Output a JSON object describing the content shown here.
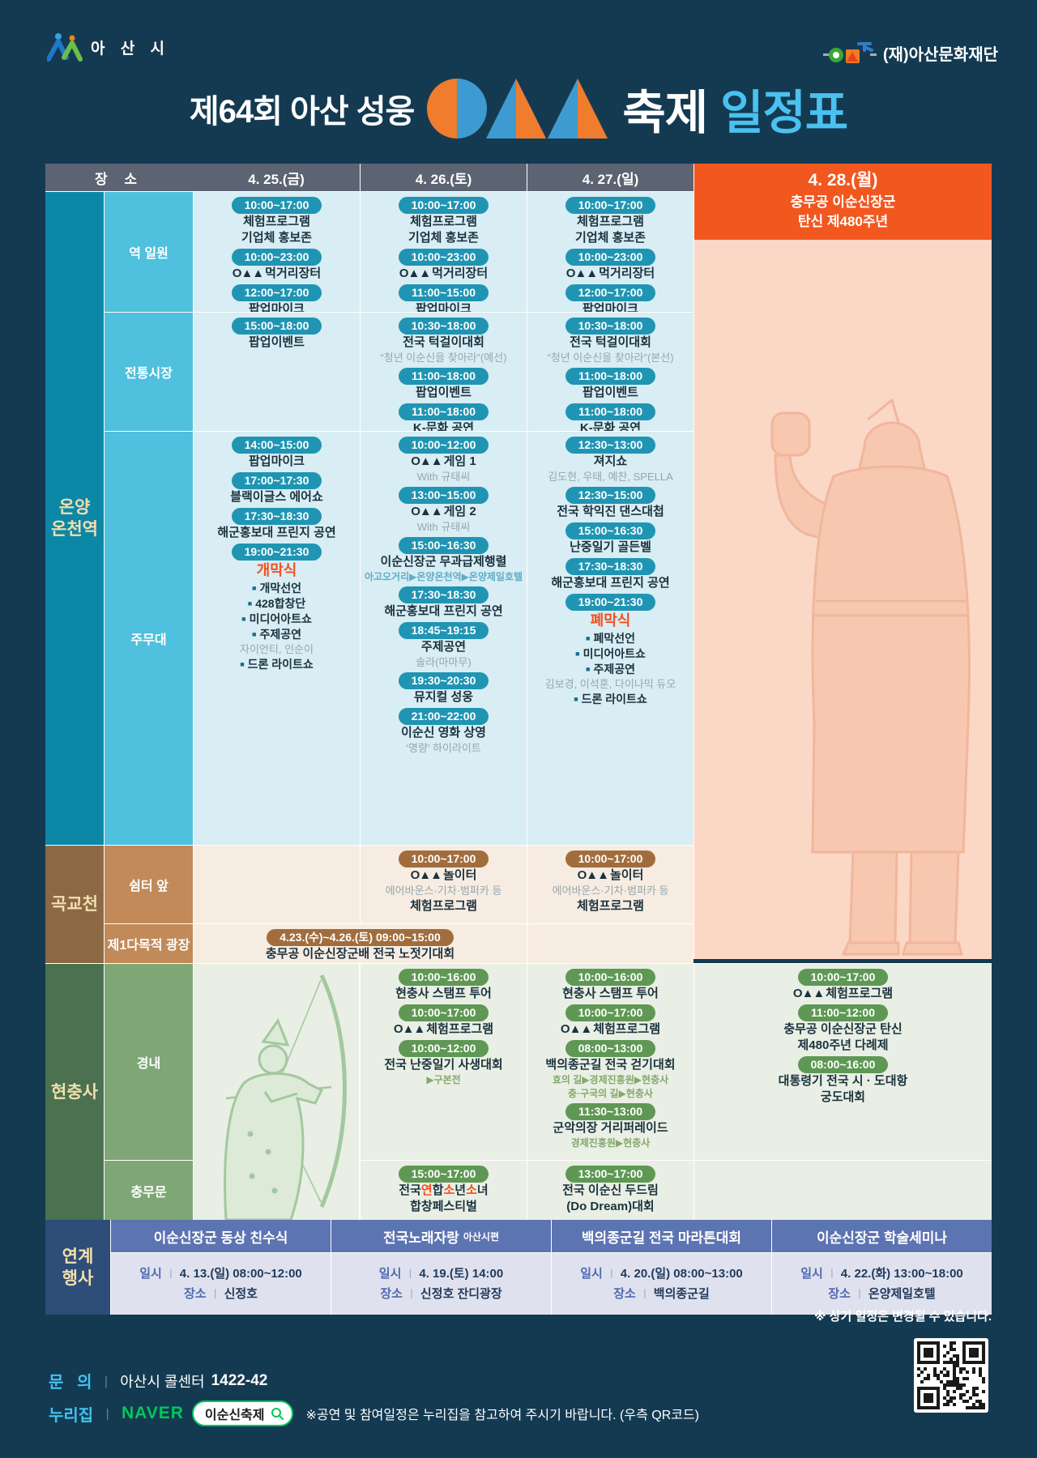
{
  "logos": {
    "city": "아 산 시",
    "foundation": "(재)아산문화재단"
  },
  "title": {
    "prefix": "제64회 아산 성웅",
    "festival": "축제",
    "schedule": "일정표"
  },
  "logo_prefix": "O▲▲",
  "colors": {
    "accent_orange": "#f2571f",
    "title_blue": "#4ac1f0",
    "naver_green": "#03c75a",
    "pale_yellow": "#f3dfae"
  },
  "table": {
    "place_header": "장 소",
    "day_headers": [
      "4. 25.(금)",
      "4. 26.(토)",
      "4. 27.(일)"
    ],
    "special": {
      "day": "4. 28.(월)",
      "line1": "충무공 이순신장군",
      "line2": "탄신 제480주년"
    },
    "sections": [
      {
        "id": "onyang",
        "label_lines": [
          "온양",
          "온천역"
        ],
        "colors": {
          "group": "#0d87a6",
          "place": "#4fc0dd",
          "cell": "#d8edf4",
          "pill": "#2095b3",
          "route": "#5fadc6"
        },
        "rows": [
          {
            "place": "역 일원",
            "cells": [
              {
                "lines": [
                  {
                    "t": "pill",
                    "x": "10:00~17:00"
                  },
                  {
                    "t": "title",
                    "x": "체험프로그램"
                  },
                  {
                    "t": "title",
                    "x": "기업체 홍보존"
                  },
                  {
                    "t": "pill",
                    "x": "10:00~23:00"
                  },
                  {
                    "t": "logo",
                    "x": "먹거리장터"
                  },
                  {
                    "t": "pill",
                    "x": "12:00~17:00"
                  },
                  {
                    "t": "title",
                    "x": "팝업마이크"
                  }
                ]
              },
              {
                "lines": [
                  {
                    "t": "pill",
                    "x": "10:00~17:00"
                  },
                  {
                    "t": "title",
                    "x": "체험프로그램"
                  },
                  {
                    "t": "title",
                    "x": "기업체 홍보존"
                  },
                  {
                    "t": "pill",
                    "x": "10:00~23:00"
                  },
                  {
                    "t": "logo",
                    "x": "먹거리장터"
                  },
                  {
                    "t": "pill",
                    "x": "11:00~15:00"
                  },
                  {
                    "t": "title",
                    "x": "팝업마이크"
                  }
                ]
              },
              {
                "lines": [
                  {
                    "t": "pill",
                    "x": "10:00~17:00"
                  },
                  {
                    "t": "title",
                    "x": "체험프로그램"
                  },
                  {
                    "t": "title",
                    "x": "기업체 홍보존"
                  },
                  {
                    "t": "pill",
                    "x": "10:00~23:00"
                  },
                  {
                    "t": "logo",
                    "x": "먹거리장터"
                  },
                  {
                    "t": "pill",
                    "x": "12:00~17:00"
                  },
                  {
                    "t": "title",
                    "x": "팝업마이크"
                  }
                ]
              }
            ]
          },
          {
            "place": "전통시장",
            "cells": [
              {
                "lines": [
                  {
                    "t": "pill",
                    "x": "15:00~18:00"
                  },
                  {
                    "t": "title",
                    "x": "팝업이벤트"
                  }
                ]
              },
              {
                "lines": [
                  {
                    "t": "pill",
                    "x": "10:30~18:00"
                  },
                  {
                    "t": "title",
                    "x": "전국 턱걸이대회"
                  },
                  {
                    "t": "sub",
                    "x": "“청년 이순신을 찾아라”(예선)"
                  },
                  {
                    "t": "pill",
                    "x": "11:00~18:00"
                  },
                  {
                    "t": "title",
                    "x": "팝업이벤트"
                  },
                  {
                    "t": "pill",
                    "x": "11:00~18:00"
                  },
                  {
                    "t": "title",
                    "x": "K-문화 공연"
                  }
                ]
              },
              {
                "lines": [
                  {
                    "t": "pill",
                    "x": "10:30~18:00"
                  },
                  {
                    "t": "title",
                    "x": "전국 턱걸이대회"
                  },
                  {
                    "t": "sub",
                    "x": "“청년 이순신을 찾아라”(본선)"
                  },
                  {
                    "t": "pill",
                    "x": "11:00~18:00"
                  },
                  {
                    "t": "title",
                    "x": "팝업이벤트"
                  },
                  {
                    "t": "pill",
                    "x": "11:00~18:00"
                  },
                  {
                    "t": "title",
                    "x": "K-문화 공연"
                  }
                ]
              }
            ]
          },
          {
            "place": "주무대",
            "cells": [
              {
                "lines": [
                  {
                    "t": "pill",
                    "x": "14:00~15:00"
                  },
                  {
                    "t": "title",
                    "x": "팝업마이크"
                  },
                  {
                    "t": "pill",
                    "x": "17:00~17:30"
                  },
                  {
                    "t": "title",
                    "x": "블랙이글스 에어쇼"
                  },
                  {
                    "t": "pill",
                    "x": "17:30~18:30"
                  },
                  {
                    "t": "title",
                    "x": "해군홍보대 프린지 공연"
                  },
                  {
                    "t": "pill",
                    "x": "19:00~21:30"
                  },
                  {
                    "t": "head",
                    "x": "개막식"
                  },
                  {
                    "t": "bullet",
                    "x": "개막선언"
                  },
                  {
                    "t": "bullet",
                    "x": "428합창단"
                  },
                  {
                    "t": "bullet",
                    "x": "미디어아트쇼"
                  },
                  {
                    "t": "bullet",
                    "x": "주제공연"
                  },
                  {
                    "t": "sub",
                    "x": "자이언티, 인순이"
                  },
                  {
                    "t": "bullet",
                    "x": "드론 라이트쇼"
                  }
                ]
              },
              {
                "lines": [
                  {
                    "t": "pill",
                    "x": "10:00~12:00"
                  },
                  {
                    "t": "logo",
                    "x": "게임 1"
                  },
                  {
                    "t": "sub",
                    "x": "With 규태씨"
                  },
                  {
                    "t": "pill",
                    "x": "13:00~15:00"
                  },
                  {
                    "t": "logo",
                    "x": "게임 2"
                  },
                  {
                    "t": "sub",
                    "x": "With 규태씨"
                  },
                  {
                    "t": "pill",
                    "x": "15:00~16:30"
                  },
                  {
                    "t": "title",
                    "x": "이순신장군 무과급제행렬"
                  },
                  {
                    "t": "route",
                    "x": "아고오거리▶온양온천역▶온양제일호텔"
                  },
                  {
                    "t": "pill",
                    "x": "17:30~18:30"
                  },
                  {
                    "t": "title",
                    "x": "해군홍보대 프린지 공연"
                  },
                  {
                    "t": "pill",
                    "x": "18:45~19:15"
                  },
                  {
                    "t": "title",
                    "x": "주제공연"
                  },
                  {
                    "t": "sub",
                    "x": "솔라(마마무)"
                  },
                  {
                    "t": "pill",
                    "x": "19:30~20:30"
                  },
                  {
                    "t": "title",
                    "x": "뮤지컬 성웅"
                  },
                  {
                    "t": "pill",
                    "x": "21:00~22:00"
                  },
                  {
                    "t": "title",
                    "x": "이순신 영화 상영"
                  },
                  {
                    "t": "sub",
                    "x": "‘명량’ 하이라이트"
                  }
                ]
              },
              {
                "lines": [
                  {
                    "t": "pill",
                    "x": "12:30~13:00"
                  },
                  {
                    "t": "title",
                    "x": "져지쇼"
                  },
                  {
                    "t": "sub",
                    "x": "김도현, 우태, 예찬, SPELLA"
                  },
                  {
                    "t": "pill",
                    "x": "12:30~15:00"
                  },
                  {
                    "t": "title",
                    "x": "전국 학익진 댄스대첩"
                  },
                  {
                    "t": "pill",
                    "x": "15:00~16:30"
                  },
                  {
                    "t": "title",
                    "x": "난중일기 골든벨"
                  },
                  {
                    "t": "pill",
                    "x": "17:30~18:30"
                  },
                  {
                    "t": "title",
                    "x": "해군홍보대 프린지 공연"
                  },
                  {
                    "t": "pill",
                    "x": "19:00~21:30"
                  },
                  {
                    "t": "head",
                    "x": "폐막식"
                  },
                  {
                    "t": "bullet",
                    "x": "폐막선언"
                  },
                  {
                    "t": "bullet",
                    "x": "미디어아트쇼"
                  },
                  {
                    "t": "bullet",
                    "x": "주제공연"
                  },
                  {
                    "t": "sub",
                    "x": "김보경, 이석훈, 다이나믹 듀오"
                  },
                  {
                    "t": "bullet",
                    "x": "드론 라이트쇼"
                  }
                ]
              }
            ]
          }
        ]
      },
      {
        "id": "gokgyo",
        "label_lines": [
          "곡교천"
        ],
        "colors": {
          "group": "#8d6845",
          "place": "#c18a58",
          "cell": "#f7ece1",
          "pill": "#a26d3d",
          "route": "#b08968"
        },
        "rows": [
          {
            "place": "쉼터 앞",
            "cells": [
              {
                "lines": []
              },
              {
                "lines": [
                  {
                    "t": "pill",
                    "x": "10:00~17:00"
                  },
                  {
                    "t": "logo",
                    "x": "놀이터"
                  },
                  {
                    "t": "sub",
                    "x": "에어바운스·기차·범퍼카 등"
                  },
                  {
                    "t": "title",
                    "x": "체험프로그램"
                  }
                ]
              },
              {
                "lines": [
                  {
                    "t": "pill",
                    "x": "10:00~17:00"
                  },
                  {
                    "t": "logo",
                    "x": "놀이터"
                  },
                  {
                    "t": "sub",
                    "x": "에어바운스·기차·범퍼카 등"
                  },
                  {
                    "t": "title",
                    "x": "체험프로그램"
                  }
                ]
              }
            ]
          },
          {
            "place": "제1다목적 광장",
            "cells": [
              {
                "span": 2,
                "lines": [
                  {
                    "t": "pill",
                    "x": "4.23.(수)~4.26.(토) 09:00~15:00"
                  },
                  {
                    "t": "title",
                    "x": "충무공 이순신장군배 전국 노젓기대회"
                  }
                ]
              },
              {
                "lines": []
              }
            ]
          }
        ]
      },
      {
        "id": "hcs",
        "label_lines": [
          "현충사"
        ],
        "colors": {
          "group": "#4b7150",
          "place": "#7ea775",
          "cell": "#e9efe4",
          "pill": "#5f9854",
          "route": "#85a86d"
        },
        "rows": [
          {
            "place": "경내",
            "cells": [
              {
                "ghost": true,
                "lines": []
              },
              {
                "lines": [
                  {
                    "t": "pill",
                    "x": "10:00~16:00"
                  },
                  {
                    "t": "title",
                    "x": "현충사 스탬프 투어"
                  },
                  {
                    "t": "pill",
                    "x": "10:00~17:00"
                  },
                  {
                    "t": "logo",
                    "x": "체험프로그램"
                  },
                  {
                    "t": "pill",
                    "x": "10:00~12:00"
                  },
                  {
                    "t": "title",
                    "x": "전국 난중일기 사생대회"
                  },
                  {
                    "t": "route",
                    "x": "▶구본전"
                  }
                ]
              },
              {
                "lines": [
                  {
                    "t": "pill",
                    "x": "10:00~16:00"
                  },
                  {
                    "t": "title",
                    "x": "현충사 스탬프 투어"
                  },
                  {
                    "t": "pill",
                    "x": "10:00~17:00"
                  },
                  {
                    "t": "logo",
                    "x": "체험프로그램"
                  },
                  {
                    "t": "pill",
                    "x": "08:00~13:00"
                  },
                  {
                    "t": "title",
                    "x": "백의종군길 전국 걷기대회"
                  },
                  {
                    "t": "route",
                    "x": "효의 길▶경제진흥원▶현충사"
                  },
                  {
                    "t": "route",
                    "x": "충·구국의 길▶현충사"
                  },
                  {
                    "t": "pill",
                    "x": "11:30~13:00"
                  },
                  {
                    "t": "title",
                    "x": "군악의장 거리퍼레이드"
                  },
                  {
                    "t": "route",
                    "x": "경제진흥원▶현충사"
                  }
                ]
              },
              {
                "wide": true,
                "lines": [
                  {
                    "t": "pill",
                    "x": "10:00~17:00"
                  },
                  {
                    "t": "logo",
                    "x": "체험프로그램"
                  },
                  {
                    "t": "pill",
                    "x": "11:00~12:00"
                  },
                  {
                    "t": "title",
                    "x": "충무공 이순신장군 탄신"
                  },
                  {
                    "t": "title",
                    "x": "제480주년 다례제"
                  },
                  {
                    "t": "pill",
                    "x": "08:00~16:00"
                  },
                  {
                    "t": "title",
                    "x": "대통령기 전국 시 · 도대항"
                  },
                  {
                    "t": "title",
                    "x": "궁도대회"
                  }
                ]
              }
            ]
          },
          {
            "place": "충무문",
            "cells": [
              {
                "ghost": true,
                "lines": []
              },
              {
                "lines": [
                  {
                    "t": "pill",
                    "x": "15:00~17:00"
                  },
                  {
                    "t": "mix",
                    "segs": [
                      [
                        "전국",
                        0
                      ],
                      [
                        "연",
                        1
                      ],
                      [
                        "합",
                        0
                      ],
                      [
                        "소",
                        1
                      ],
                      [
                        "년",
                        0
                      ],
                      [
                        "소",
                        1
                      ],
                      [
                        "녀",
                        0
                      ]
                    ]
                  },
                  {
                    "t": "title",
                    "x": "합창페스티벌"
                  }
                ]
              },
              {
                "lines": [
                  {
                    "t": "pill",
                    "x": "13:00~17:00"
                  },
                  {
                    "t": "title",
                    "x": "전국 이순신 두드림"
                  },
                  {
                    "t": "title",
                    "x": "(Do Dream)대회"
                  }
                ]
              },
              {
                "wide": true,
                "lines": []
              }
            ]
          }
        ]
      }
    ]
  },
  "linked": {
    "label_lines": [
      "연계",
      "행사"
    ],
    "time_label": "일시",
    "place_label": "장소",
    "sep": "ㅣ",
    "events": [
      {
        "title": "이순신장군 동상 친수식",
        "small": "",
        "datetime": "4. 13.(일) 08:00~12:00",
        "place": "신정호"
      },
      {
        "title": "전국노래자랑",
        "small": "아산시편",
        "datetime": "4. 19.(토) 14:00",
        "place": "신정호 잔디광장"
      },
      {
        "title": "백의종군길 전국 마라톤대회",
        "small": "",
        "datetime": "4. 20.(일) 08:00~13:00",
        "place": "백의종군길"
      },
      {
        "title": "이순신장군 학술세미나",
        "small": "",
        "datetime": "4. 22.(화) 13:00~18:00",
        "place": "온양제일호텔"
      }
    ]
  },
  "notes": {
    "schedule_change": "※ 상기 일정은 변경될 수 있습니다."
  },
  "footer": {
    "inquiry_label": "문   의",
    "sep": "ㅣ",
    "inquiry_text": "아산시 콜센터",
    "inquiry_phone": "1422-42",
    "site_label": "누리집",
    "naver": "NAVER",
    "search": "이순신축제",
    "note": "※공연 및 참여일정은 누리집을 참고하여 주시기 바랍니다. (우측 QR코드)"
  }
}
